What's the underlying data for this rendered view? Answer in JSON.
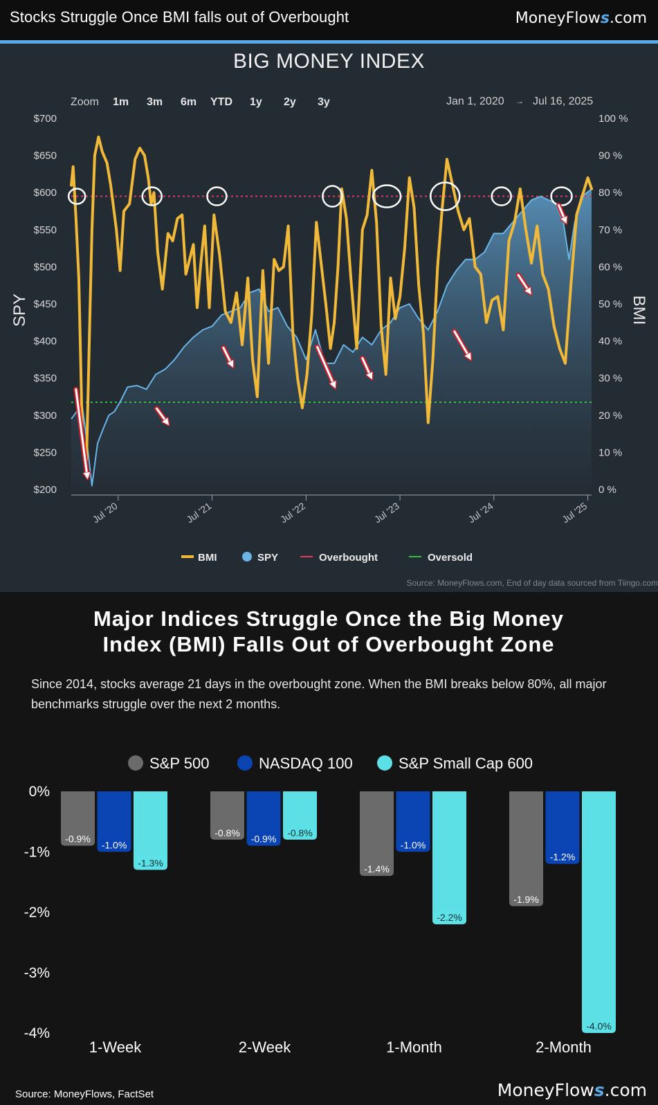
{
  "header": {
    "title": "Stocks Struggle Once BMI falls out of Overbought",
    "brand": {
      "name": "MoneyFlow",
      "s": "s",
      "domain": ".com"
    }
  },
  "bmi_chart": {
    "title": "BIG MONEY INDEX",
    "zoom_label": "Zoom",
    "zoom_buttons": [
      "1m",
      "3m",
      "6m",
      "YTD",
      "1y",
      "2y",
      "3y"
    ],
    "date_from": "Jan 1, 2020",
    "date_arrow": "→",
    "date_to": "Jul 16, 2025",
    "source": "Source: MoneyFlows.com, End of day data sourced from Tiingo.com"
  },
  "section2": {
    "title_line1": "Major Indices Struggle Once the Big Money",
    "title_line2": "Index (BMI) Falls Out of Overbought Zone",
    "description": "Since 2014, stocks average 21 days in the overbought zone. When the BMI breaks below 80%, all major benchmarks struggle over the next 2 months.",
    "source": "Source: MoneyFlows, FactSet",
    "brand": {
      "name": "MoneyFlow",
      "s": "s",
      "domain": ".com"
    }
  },
  "chart_data": [
    {
      "type": "line",
      "title": "BIG MONEY INDEX",
      "xlabel": "",
      "ylabel_left": "SPY",
      "ylabel_right": "BMI",
      "x_range": [
        "2020-01-01",
        "2025-07-16"
      ],
      "x_tick_labels": [
        "Jul '20",
        "Jul '21",
        "Jul '22",
        "Jul '23",
        "Jul '24",
        "Jul '25"
      ],
      "y_left_range": [
        200,
        700
      ],
      "y_left_tick_labels": [
        "$700",
        "$650",
        "$600",
        "$550",
        "$500",
        "$450",
        "$400",
        "$350",
        "$300",
        "$250",
        "$200"
      ],
      "y_right_range": [
        0,
        100
      ],
      "y_right_tick_labels": [
        "100 %",
        "90 %",
        "80 %",
        "70 %",
        "60 %",
        "50 %",
        "40 %",
        "30 %",
        "20 %",
        "10 %",
        "0 %"
      ],
      "legend": [
        "BMI",
        "SPY",
        "Overbought",
        "Oversold"
      ],
      "legend_position": "bottom",
      "overbought_level": 79,
      "oversold_level": 23.5,
      "colors": {
        "bmi": "#f0b93a",
        "spy": "#6ab4e6",
        "overbought": "#e23b62",
        "oversold": "#34c43b"
      },
      "series": [
        {
          "name": "BMI",
          "x": [
            2020.0,
            2020.02,
            2020.05,
            2020.08,
            2020.12,
            2020.16,
            2020.19,
            2020.22,
            2020.25,
            2020.29,
            2020.33,
            2020.38,
            2020.42,
            2020.48,
            2020.52,
            2020.56,
            2020.62,
            2020.68,
            2020.73,
            2020.78,
            2020.82,
            2020.85,
            2020.88,
            2020.92,
            2020.97,
            2021.03,
            2021.08,
            2021.13,
            2021.18,
            2021.22,
            2021.26,
            2021.3,
            2021.34,
            2021.38,
            2021.42,
            2021.47,
            2021.52,
            2021.58,
            2021.64,
            2021.7,
            2021.76,
            2021.82,
            2021.88,
            2021.93,
            2021.98,
            2022.04,
            2022.1,
            2022.16,
            2022.21,
            2022.26,
            2022.31,
            2022.36,
            2022.41,
            2022.46,
            2022.51,
            2022.56,
            2022.61,
            2022.66,
            2022.71,
            2022.76,
            2022.8,
            2022.84,
            2022.88,
            2022.93,
            2022.98,
            2023.04,
            2023.1,
            2023.15,
            2023.2,
            2023.25,
            2023.3,
            2023.35,
            2023.4,
            2023.45,
            2023.5,
            2023.55,
            2023.6,
            2023.65,
            2023.7,
            2023.75,
            2023.8,
            2023.85,
            2023.9,
            2023.95,
            2024.0,
            2024.06,
            2024.12,
            2024.18,
            2024.24,
            2024.3,
            2024.36,
            2024.42,
            2024.48,
            2024.54,
            2024.6,
            2024.66,
            2024.72,
            2024.78,
            2024.84,
            2024.9,
            2024.96,
            2025.02,
            2025.08,
            2025.14,
            2025.2,
            2025.26,
            2025.32,
            2025.38,
            2025.44,
            2025.5,
            2025.54
          ],
          "values": [
            82,
            87,
            73,
            57,
            12,
            5,
            38,
            70,
            90,
            95,
            91,
            88,
            82,
            70,
            59,
            75,
            77,
            89,
            92,
            90,
            84,
            77,
            80,
            64,
            54,
            69,
            67,
            73,
            74,
            58,
            62,
            66,
            49,
            61,
            71,
            49,
            74,
            63,
            48,
            45,
            53,
            39,
            57,
            35,
            25,
            59,
            34,
            62,
            59,
            60,
            71,
            42,
            30,
            22,
            31,
            47,
            72,
            61,
            50,
            38,
            45,
            60,
            81,
            73,
            56,
            38,
            70,
            74,
            86,
            72,
            44,
            31,
            57,
            46,
            52,
            65,
            84,
            76,
            55,
            42,
            18,
            35,
            60,
            76,
            89,
            82,
            75,
            70,
            73,
            60,
            58,
            45,
            51,
            52,
            43,
            67,
            72,
            81,
            70,
            61,
            71,
            58,
            54,
            44,
            38,
            34,
            55,
            74,
            79,
            84,
            81
          ]
        },
        {
          "name": "SPY",
          "x": [
            2020.0,
            2020.06,
            2020.12,
            2020.17,
            2020.22,
            2020.28,
            2020.34,
            2020.4,
            2020.46,
            2020.52,
            2020.6,
            2020.7,
            2020.8,
            2020.9,
            2021.0,
            2021.1,
            2021.2,
            2021.3,
            2021.4,
            2021.5,
            2021.6,
            2021.7,
            2021.8,
            2021.9,
            2022.0,
            2022.1,
            2022.2,
            2022.3,
            2022.4,
            2022.5,
            2022.6,
            2022.7,
            2022.8,
            2022.9,
            2023.0,
            2023.1,
            2023.2,
            2023.3,
            2023.4,
            2023.5,
            2023.6,
            2023.7,
            2023.8,
            2023.9,
            2024.0,
            2024.1,
            2024.2,
            2024.3,
            2024.4,
            2024.5,
            2024.6,
            2024.7,
            2024.8,
            2024.9,
            2025.0,
            2025.08,
            2025.16,
            2025.24,
            2025.3,
            2025.36,
            2025.44,
            2025.54
          ],
          "values": [
            295,
            305,
            310,
            260,
            205,
            262,
            282,
            300,
            305,
            318,
            338,
            340,
            335,
            355,
            362,
            375,
            392,
            405,
            415,
            420,
            435,
            440,
            445,
            465,
            470,
            440,
            445,
            420,
            405,
            375,
            415,
            370,
            370,
            395,
            385,
            405,
            395,
            415,
            425,
            445,
            450,
            430,
            415,
            440,
            475,
            495,
            510,
            510,
            520,
            545,
            545,
            560,
            575,
            590,
            595,
            590,
            585,
            560,
            510,
            560,
            595,
            605
          ]
        }
      ]
    },
    {
      "type": "bar",
      "title": "Major Indices Struggle Once the Big Money Index (BMI) Falls Out of Overbought Zone",
      "categories": [
        "1-Week",
        "2-Week",
        "1-Month",
        "2-Month"
      ],
      "ylim": [
        -4,
        0
      ],
      "y_tick_labels": [
        "0%",
        "-1%",
        "-2%",
        "-3%",
        "-4%"
      ],
      "legend_position": "top",
      "series": [
        {
          "name": "S&P 500",
          "color": "#6b6b6b",
          "values": [
            -0.9,
            -0.8,
            -1.4,
            -1.9
          ],
          "labels": [
            "-0.9%",
            "-0.8%",
            "-1.4%",
            "-1.9%"
          ]
        },
        {
          "name": "NASDAQ 100",
          "color": "#0b45b4",
          "values": [
            -1.0,
            -0.9,
            -1.0,
            -1.2
          ],
          "labels": [
            "-1.0%",
            "-0.9%",
            "-1.0%",
            "-1.2%"
          ]
        },
        {
          "name": "S&P Small Cap 600",
          "color": "#5ce0e6",
          "values": [
            -1.3,
            -0.8,
            -2.2,
            -4.0
          ],
          "labels": [
            "-1.3%",
            "-0.8%",
            "-2.2%",
            "-4.0%"
          ]
        }
      ]
    }
  ]
}
